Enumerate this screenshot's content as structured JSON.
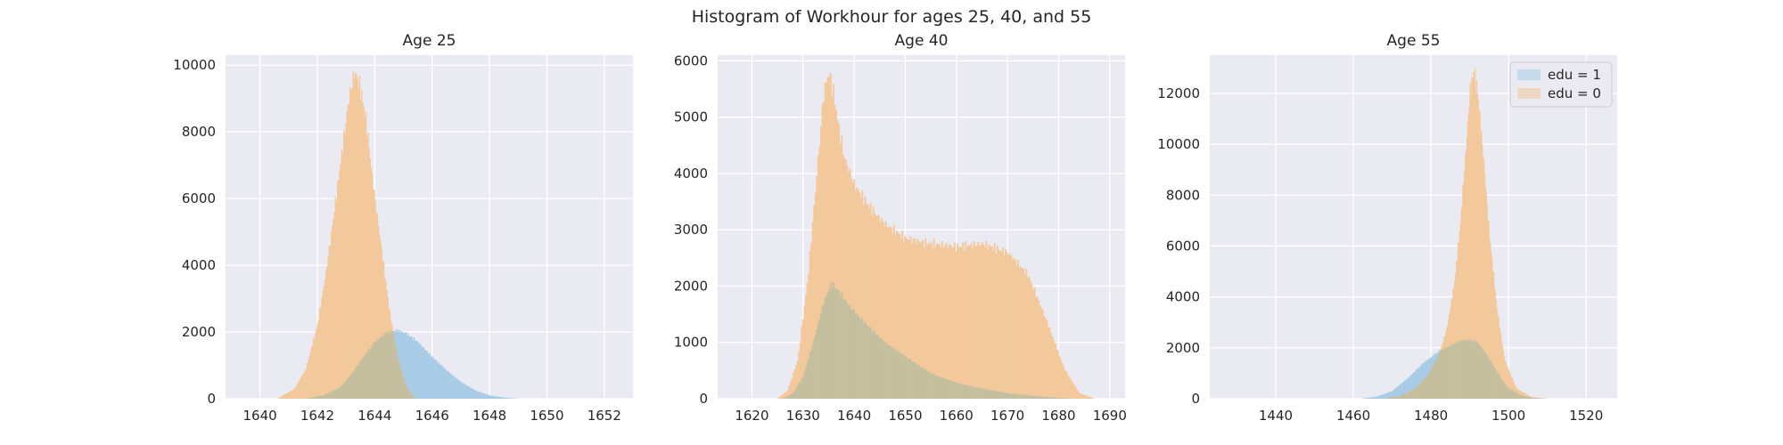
{
  "suptitle": "Histogram of Workhour for ages 25, 40, and 55",
  "colors": {
    "background": "#eaeaf2",
    "grid": "#ffffff",
    "edu1": "#a9cce6",
    "edu0": "#f3c99c",
    "overlap": "#c4bf9f"
  },
  "legend": {
    "entries": [
      "edu = 1",
      "edu = 0"
    ],
    "placement": "upper right of Age 55 panel"
  },
  "chart_data": [
    {
      "type": "histogram",
      "title": "Age 25",
      "xlim": [
        1638.8,
        1653.0
      ],
      "ylim": [
        0,
        10300
      ],
      "xticks": [
        1640,
        1642,
        1644,
        1646,
        1648,
        1650,
        1652
      ],
      "yticks": [
        0,
        2000,
        4000,
        6000,
        8000,
        10000
      ],
      "grid": true,
      "series": [
        {
          "name": "edu = 1",
          "x": [
            1641.6,
            1642.2,
            1642.8,
            1643.2,
            1643.6,
            1644.0,
            1644.4,
            1644.8,
            1645.1,
            1645.5,
            1646.0,
            1646.5,
            1647.0,
            1647.5,
            1648.0,
            1648.5,
            1649.0
          ],
          "y": [
            0,
            100,
            350,
            750,
            1250,
            1700,
            1980,
            2050,
            1950,
            1700,
            1250,
            850,
            500,
            250,
            100,
            30,
            0
          ]
        },
        {
          "name": "edu = 0",
          "x": [
            1640.6,
            1641.2,
            1641.6,
            1642.0,
            1642.3,
            1642.6,
            1642.9,
            1643.1,
            1643.3,
            1643.5,
            1643.7,
            1643.9,
            1644.2,
            1644.5,
            1644.8,
            1645.1,
            1645.4
          ],
          "y": [
            0,
            300,
            900,
            2200,
            3800,
            5700,
            7700,
            9000,
            9800,
            9300,
            8300,
            6700,
            4700,
            2700,
            1200,
            350,
            0
          ]
        }
      ]
    },
    {
      "type": "histogram",
      "title": "Age 40",
      "xlim": [
        1613.3,
        1693.0
      ],
      "ylim": [
        0,
        6100
      ],
      "xticks": [
        1620,
        1630,
        1640,
        1650,
        1660,
        1670,
        1680,
        1690
      ],
      "yticks": [
        0,
        1000,
        2000,
        3000,
        4000,
        5000,
        6000
      ],
      "grid": true,
      "series": [
        {
          "name": "edu = 1",
          "x": [
            1626,
            1628,
            1630,
            1632,
            1634,
            1635.5,
            1637,
            1639,
            1642,
            1646,
            1650,
            1655,
            1660,
            1665,
            1670,
            1675,
            1680,
            1683
          ],
          "y": [
            0,
            100,
            400,
            1000,
            1700,
            2050,
            1900,
            1650,
            1350,
            1000,
            750,
            450,
            280,
            180,
            100,
            50,
            15,
            0
          ]
        },
        {
          "name": "edu = 0",
          "x": [
            1625,
            1627,
            1629,
            1631,
            1633,
            1634,
            1635,
            1636,
            1637,
            1638,
            1640,
            1643,
            1646,
            1650,
            1655,
            1660,
            1665,
            1670,
            1674,
            1678,
            1681,
            1684,
            1687
          ],
          "y": [
            0,
            150,
            700,
            2200,
            4300,
            5400,
            5800,
            5400,
            4800,
            4300,
            3800,
            3400,
            3100,
            2850,
            2750,
            2700,
            2750,
            2600,
            2200,
            1300,
            550,
            100,
            0
          ]
        }
      ]
    },
    {
      "type": "histogram",
      "title": "Age 55",
      "xlim": [
        1423.0,
        1528.0
      ],
      "ylim": [
        0,
        13500
      ],
      "xticks": [
        1440,
        1460,
        1480,
        1500,
        1520
      ],
      "yticks": [
        0,
        2000,
        4000,
        6000,
        8000,
        10000,
        12000
      ],
      "grid": true,
      "series": [
        {
          "name": "edu = 1",
          "x": [
            1462,
            1466,
            1470,
            1474,
            1478,
            1482,
            1486,
            1488,
            1490,
            1492,
            1494,
            1496,
            1498,
            1500,
            1503,
            1506,
            1509
          ],
          "y": [
            0,
            80,
            300,
            800,
            1400,
            1850,
            2150,
            2300,
            2300,
            2200,
            1800,
            1300,
            800,
            400,
            150,
            40,
            0
          ]
        },
        {
          "name": "edu = 0",
          "x": [
            1468,
            1472,
            1476,
            1479,
            1482,
            1484,
            1486,
            1487.5,
            1489,
            1490,
            1491,
            1492,
            1493.5,
            1495,
            1497,
            1499,
            1502,
            1506,
            1510
          ],
          "y": [
            0,
            100,
            400,
            900,
            1700,
            2700,
            4500,
            6800,
            9800,
            12000,
            12900,
            12000,
            9500,
            6500,
            3500,
            1500,
            400,
            60,
            0
          ]
        }
      ]
    }
  ]
}
